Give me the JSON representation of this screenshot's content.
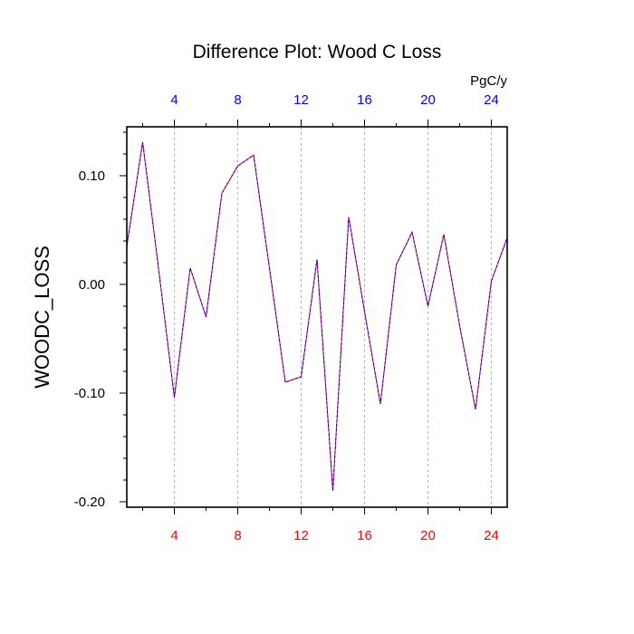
{
  "chart_data": {
    "type": "line",
    "title": "Difference Plot: Wood C Loss",
    "ylabel": "WOODC_LOSS",
    "units_label": "PgC/y",
    "xlim": [
      1,
      25
    ],
    "ylim": [
      -0.205,
      0.145
    ],
    "x_ticks": [
      4,
      8,
      12,
      16,
      20,
      24
    ],
    "x_minor_ticks": [
      2,
      6,
      10,
      14,
      18,
      22
    ],
    "x_tick_labels_bottom": [
      "4",
      "8",
      "12",
      "16",
      "20",
      "24"
    ],
    "x_tick_labels_top": [
      "4",
      "8",
      "12",
      "16",
      "20",
      "24"
    ],
    "y_ticks": [
      -0.2,
      -0.1,
      0.0,
      0.1
    ],
    "y_tick_labels": [
      "-0.20",
      "-0.10",
      "0.00",
      "0.10"
    ],
    "y_minor_step": 0.02,
    "grid": "vertical-dashed",
    "colors": {
      "bottom_tick_labels": "#ff0000",
      "top_tick_labels": "#0000ff",
      "series_a": "#ff0000",
      "series_b": "#0000ff",
      "grid": "#b4b4b4",
      "frame": "#000000"
    },
    "series": [
      {
        "x": [
          1,
          2,
          3,
          4,
          5,
          6,
          7,
          8,
          9,
          10,
          11,
          12,
          13,
          14,
          15,
          16,
          17,
          18,
          19,
          20,
          21,
          22,
          23,
          24,
          25
        ],
        "values": [
          0.035,
          0.131,
          0.015,
          -0.104,
          0.015,
          -0.03,
          0.084,
          0.109,
          0.119,
          0.015,
          -0.09,
          -0.085,
          0.023,
          -0.19,
          0.062,
          -0.025,
          -0.11,
          0.018,
          0.048,
          -0.02,
          0.046,
          -0.038,
          -0.115,
          0.003,
          0.043
        ]
      }
    ]
  }
}
